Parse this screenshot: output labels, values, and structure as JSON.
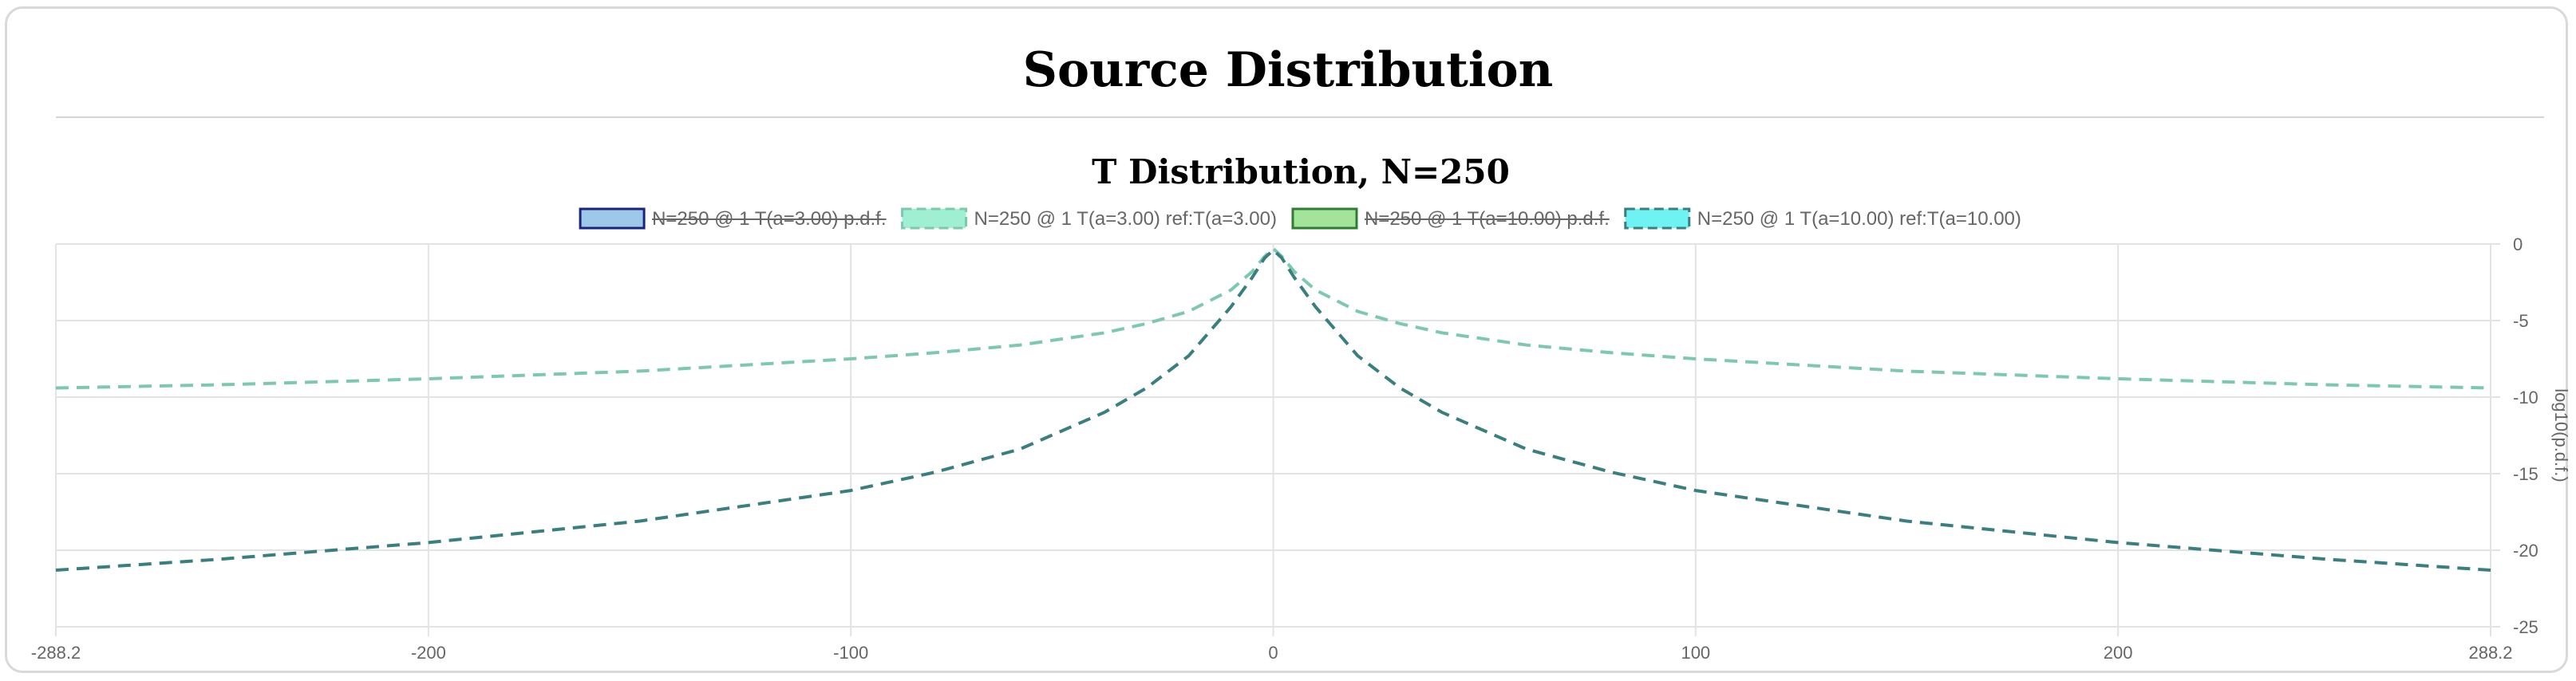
{
  "page": {
    "title": "Source Distribution"
  },
  "chart_data": {
    "type": "line",
    "title": "T Distribution, N=250",
    "xlabel": "",
    "ylabel": "log10(p.d.f.)",
    "xlim": [
      -288.2,
      288.2
    ],
    "ylim": [
      -25,
      0
    ],
    "x_ticks": [
      "-288.2",
      "-200",
      "-100",
      "0",
      "100",
      "200",
      "288.2"
    ],
    "x_tick_values": [
      -288.2,
      -200,
      -100,
      0,
      100,
      200,
      288.2
    ],
    "y_ticks": [
      "0",
      "-5",
      "-10",
      "-15",
      "-20",
      "-25"
    ],
    "y_tick_values": [
      0,
      -5,
      -10,
      -15,
      -20,
      -25
    ],
    "y_axis_position": "right",
    "grid": true,
    "legend_position": "top",
    "series": [
      {
        "name": "N=250 @ 1 T(a=3.00) p.d.f.",
        "hidden": true,
        "dash": false,
        "fill": "#9ec8e8",
        "stroke": "#1a237e",
        "x": [],
        "y": []
      },
      {
        "name": "N=250 @ 1 T(a=3.00) ref:T(a=3.00)",
        "hidden": false,
        "dash": true,
        "fill": "#9ff0d2",
        "stroke": "#7cc9ae",
        "x": [
          -288.2,
          -250,
          -200,
          -150,
          -100,
          -80,
          -60,
          -40,
          -30,
          -20,
          -10,
          -5,
          -2,
          0,
          2,
          5,
          10,
          20,
          30,
          40,
          60,
          80,
          100,
          150,
          200,
          250,
          288.2
        ],
        "y": [
          -9.4,
          -9.2,
          -8.8,
          -8.3,
          -7.5,
          -7.1,
          -6.6,
          -5.8,
          -5.2,
          -4.4,
          -3.0,
          -1.8,
          -0.8,
          -0.3,
          -0.8,
          -1.8,
          -3.0,
          -4.4,
          -5.2,
          -5.8,
          -6.6,
          -7.1,
          -7.5,
          -8.3,
          -8.8,
          -9.2,
          -9.4
        ]
      },
      {
        "name": "N=250 @ 1 T(a=10.00) p.d.f.",
        "hidden": true,
        "dash": false,
        "fill": "#a3e49a",
        "stroke": "#2e7d32",
        "x": [],
        "y": []
      },
      {
        "name": "N=250 @ 1 T(a=10.00) ref:T(a=10.00)",
        "hidden": false,
        "dash": true,
        "fill": "#6ef2f2",
        "stroke": "#3a7f7f",
        "x": [
          -288.2,
          -250,
          -200,
          -150,
          -100,
          -80,
          -60,
          -40,
          -30,
          -20,
          -10,
          -5,
          -2,
          0,
          2,
          5,
          10,
          20,
          30,
          40,
          60,
          80,
          100,
          150,
          200,
          250,
          288.2
        ],
        "y": [
          -21.3,
          -20.6,
          -19.5,
          -18.1,
          -16.1,
          -14.9,
          -13.4,
          -11.0,
          -9.4,
          -7.3,
          -4.1,
          -2.2,
          -0.9,
          -0.4,
          -0.9,
          -2.2,
          -4.1,
          -7.3,
          -9.4,
          -11.0,
          -13.4,
          -14.9,
          -16.1,
          -18.1,
          -19.5,
          -20.6,
          -21.3
        ]
      }
    ]
  }
}
